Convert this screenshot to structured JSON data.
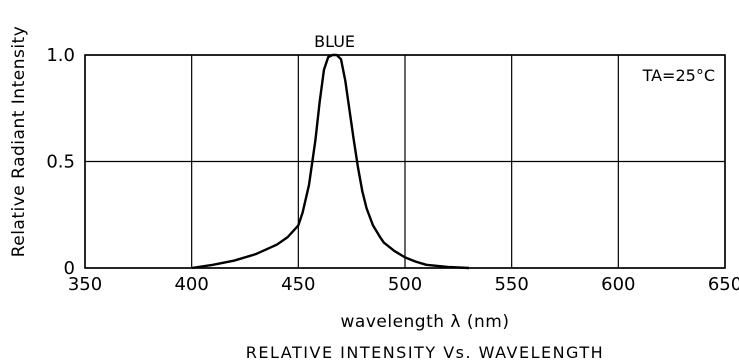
{
  "chart_data": {
    "type": "line",
    "title": "RELATIVE INTENSITY Vs. WAVELENGTH",
    "xlabel": "wavelength λ  (nm)",
    "ylabel": "Relative Radiant Intensity",
    "xlim": [
      350,
      650
    ],
    "ylim": [
      0,
      1.0
    ],
    "x_ticks": [
      "350",
      "400",
      "450",
      "500",
      "550",
      "600",
      "650"
    ],
    "y_ticks": [
      "0",
      "0.5",
      "1.0"
    ],
    "grid": true,
    "annotations": {
      "curve_label": "BLUE",
      "condition": "TA=25°C"
    },
    "series": [
      {
        "name": "BLUE",
        "x": [
          400,
          410,
          420,
          430,
          440,
          445,
          450,
          452,
          455,
          458,
          460,
          462,
          464,
          466,
          468,
          470,
          472,
          474,
          476,
          478,
          480,
          482,
          485,
          488,
          490,
          495,
          500,
          505,
          510,
          520,
          530
        ],
        "y": [
          0.0,
          0.015,
          0.035,
          0.065,
          0.11,
          0.145,
          0.2,
          0.26,
          0.39,
          0.6,
          0.78,
          0.93,
          0.99,
          1.0,
          1.0,
          0.98,
          0.88,
          0.74,
          0.6,
          0.47,
          0.36,
          0.28,
          0.2,
          0.15,
          0.12,
          0.08,
          0.05,
          0.03,
          0.015,
          0.005,
          0.0
        ]
      }
    ]
  }
}
